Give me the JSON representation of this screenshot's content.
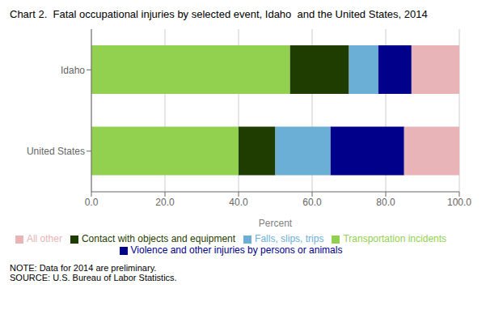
{
  "chart_data": {
    "type": "bar",
    "title": "Chart 2.  Fatal occupational injuries by selected event, Idaho  and the United States, 2014",
    "orientation": "horizontal",
    "stacked": true,
    "categories": [
      "United States",
      "Idaho"
    ],
    "series": [
      {
        "name": "Transportation incidents",
        "color": "#92d050",
        "values": [
          40.0,
          54.0
        ]
      },
      {
        "name": "Contact with objects and equipment",
        "color": "#1f3d00",
        "values": [
          10.0,
          16.0
        ]
      },
      {
        "name": "Falls, slips, trips",
        "color": "#6baed6",
        "values": [
          15.0,
          8.0
        ]
      },
      {
        "name": "Violence and other injuries by persons or animals",
        "color": "#00008b",
        "values": [
          20.0,
          9.0
        ]
      },
      {
        "name": "All other",
        "color": "#e8b4b8",
        "values": [
          15.0,
          13.0
        ]
      }
    ],
    "xlabel": "Percent",
    "xlim": [
      0,
      100
    ],
    "xticks": [
      {
        "value": 0,
        "label": "0.0"
      },
      {
        "value": 20,
        "label": "20.0"
      },
      {
        "value": 40,
        "label": "40.0"
      },
      {
        "value": 60,
        "label": "60.0"
      },
      {
        "value": 80,
        "label": "80.0"
      },
      {
        "value": 100,
        "label": "100.0"
      }
    ],
    "grid": true,
    "legend": "bottom",
    "annotations": [
      "NOTE: Data for 2014 are preliminary.",
      "SOURCE: U.S. Bureau of Labor Statistics."
    ]
  }
}
